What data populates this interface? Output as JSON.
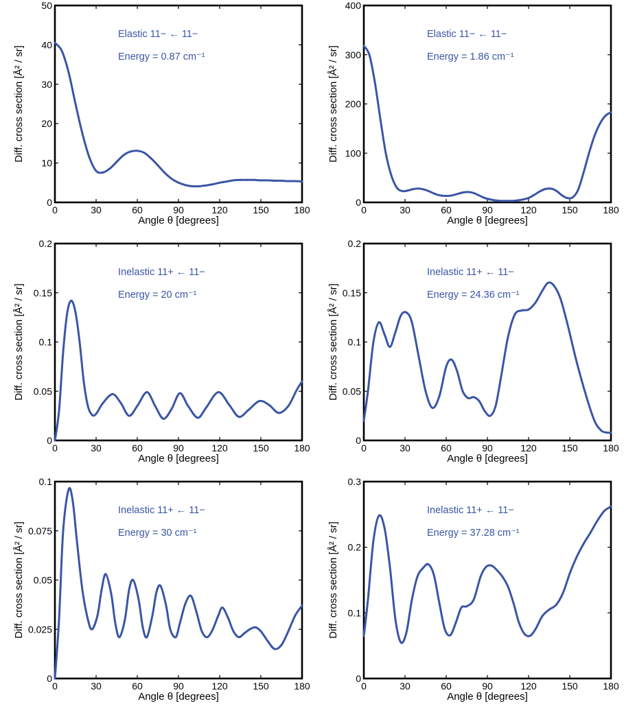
{
  "figure": {
    "line_color": "#3a55a4",
    "annotation_color": "#3a55a4",
    "frame_color": "#000000"
  },
  "chart_data": [
    {
      "type": "line",
      "xlabel": "Angle θ [degrees]",
      "ylabel": "Diff. cross section [Å² / sr]",
      "xlim": [
        0,
        180
      ],
      "ylim": [
        0,
        50
      ],
      "xticks": [
        0,
        30,
        60,
        90,
        120,
        150,
        180
      ],
      "yticks": [
        0,
        10,
        20,
        30,
        40,
        50
      ],
      "yticklabels": [
        "0",
        "10",
        "20",
        "30",
        "40",
        "50"
      ],
      "annotations": [
        "Elastic 11− ← 11−",
        "Energy = 0.87 cm⁻¹"
      ],
      "series": [
        {
          "x": [
            0,
            5,
            10,
            15,
            20,
            25,
            30,
            35,
            40,
            45,
            50,
            55,
            60,
            65,
            70,
            75,
            80,
            85,
            90,
            95,
            100,
            105,
            110,
            115,
            120,
            125,
            130,
            135,
            140,
            145,
            150,
            155,
            160,
            165,
            170,
            175,
            180
          ],
          "y": [
            40.5,
            38.5,
            33,
            25,
            17.5,
            11.5,
            8,
            7.6,
            8.6,
            10.3,
            12,
            12.9,
            13.1,
            12.6,
            11.2,
            9.4,
            7.5,
            6,
            5,
            4.4,
            4.1,
            4.1,
            4.3,
            4.6,
            5,
            5.3,
            5.6,
            5.7,
            5.7,
            5.7,
            5.6,
            5.6,
            5.5,
            5.5,
            5.4,
            5.4,
            5.3
          ]
        }
      ]
    },
    {
      "type": "line",
      "xlabel": "Angle θ [degrees]",
      "ylabel": "Diff. cross section [Å² / sr]",
      "xlim": [
        0,
        180
      ],
      "ylim": [
        0,
        400
      ],
      "xticks": [
        0,
        30,
        60,
        90,
        120,
        150,
        180
      ],
      "yticks": [
        0,
        100,
        200,
        300,
        400
      ],
      "yticklabels": [
        "0",
        "100",
        "200",
        "300",
        "400"
      ],
      "annotations": [
        "Elastic 11− ← 11−",
        "Energy = 1.86 cm⁻¹"
      ],
      "series": [
        {
          "x": [
            0,
            4,
            8,
            12,
            16,
            20,
            24,
            28,
            32,
            36,
            40,
            44,
            48,
            52,
            56,
            60,
            64,
            68,
            72,
            76,
            80,
            84,
            88,
            92,
            96,
            100,
            104,
            108,
            112,
            116,
            120,
            124,
            128,
            132,
            136,
            140,
            144,
            148,
            152,
            156,
            160,
            164,
            168,
            172,
            176,
            180
          ],
          "y": [
            318,
            300,
            245,
            170,
            100,
            55,
            30,
            23,
            24,
            27,
            28,
            26,
            22,
            17,
            14,
            13,
            14,
            17,
            20,
            21,
            19,
            14,
            9,
            6,
            4,
            3,
            3,
            3,
            4,
            6,
            9,
            15,
            22,
            27,
            28,
            24,
            15,
            9,
            10,
            25,
            60,
            100,
            135,
            160,
            176,
            183
          ]
        }
      ]
    },
    {
      "type": "line",
      "xlabel": "Angle θ [degrees]",
      "ylabel": "Diff. cross section [Å² / sr]",
      "xlim": [
        0,
        180
      ],
      "ylim": [
        0,
        0.2
      ],
      "xticks": [
        0,
        30,
        60,
        90,
        120,
        150,
        180
      ],
      "yticks": [
        0,
        0.05,
        0.1,
        0.15,
        0.2
      ],
      "yticklabels": [
        "0",
        "0.05",
        "0.1",
        "0.15",
        "0.2"
      ],
      "annotations": [
        "Inelastic 11+ ← 11−",
        "Energy = 20 cm⁻¹"
      ],
      "series": [
        {
          "x": [
            0,
            3,
            6,
            9,
            12,
            15,
            18,
            21,
            24,
            27,
            30,
            35,
            42,
            48,
            54,
            60,
            67,
            73,
            79,
            85,
            91,
            97,
            104,
            110,
            119,
            127,
            134,
            141,
            149,
            156,
            163,
            170,
            176,
            180
          ],
          "y": [
            0,
            0.03,
            0.09,
            0.13,
            0.142,
            0.13,
            0.1,
            0.06,
            0.035,
            0.026,
            0.027,
            0.038,
            0.047,
            0.038,
            0.025,
            0.035,
            0.049,
            0.035,
            0.022,
            0.032,
            0.048,
            0.035,
            0.023,
            0.033,
            0.049,
            0.036,
            0.024,
            0.031,
            0.04,
            0.036,
            0.028,
            0.035,
            0.051,
            0.06
          ]
        }
      ]
    },
    {
      "type": "line",
      "xlabel": "Angle θ [degrees]",
      "ylabel": "Diff. cross section [Å² / sr]",
      "xlim": [
        0,
        180
      ],
      "ylim": [
        0,
        0.2
      ],
      "xticks": [
        0,
        30,
        60,
        90,
        120,
        150,
        180
      ],
      "yticks": [
        0,
        0.05,
        0.1,
        0.15,
        0.2
      ],
      "yticklabels": [
        "0",
        "0.05",
        "0.1",
        "0.15",
        "0.2"
      ],
      "annotations": [
        "Inelastic 11+ ← 11−",
        "Energy = 24.36 cm⁻¹"
      ],
      "series": [
        {
          "x": [
            0,
            3,
            7,
            11,
            15,
            19,
            23,
            27,
            31,
            35,
            40,
            45,
            50,
            55,
            60,
            64,
            68,
            72,
            76,
            80,
            84,
            88,
            92,
            96,
            100,
            105,
            110,
            115,
            120,
            125,
            130,
            134,
            138,
            143,
            148,
            155,
            162,
            168,
            173,
            177,
            180
          ],
          "y": [
            0.02,
            0.05,
            0.1,
            0.12,
            0.108,
            0.095,
            0.11,
            0.127,
            0.13,
            0.12,
            0.085,
            0.05,
            0.033,
            0.045,
            0.075,
            0.082,
            0.07,
            0.05,
            0.043,
            0.044,
            0.04,
            0.03,
            0.025,
            0.035,
            0.065,
            0.105,
            0.128,
            0.132,
            0.133,
            0.14,
            0.152,
            0.16,
            0.158,
            0.145,
            0.12,
            0.08,
            0.045,
            0.02,
            0.01,
            0.008,
            0.008
          ]
        }
      ]
    },
    {
      "type": "line",
      "xlabel": "Angle θ [degrees]",
      "ylabel": "Diff. cross section [Å² / sr]",
      "xlim": [
        0,
        180
      ],
      "ylim": [
        0,
        0.1
      ],
      "xticks": [
        0,
        30,
        60,
        90,
        120,
        150,
        180
      ],
      "yticks": [
        0,
        0.025,
        0.05,
        0.075,
        0.1
      ],
      "yticklabels": [
        "0",
        "0.025",
        "0.05",
        "0.075",
        "0.1"
      ],
      "annotations": [
        "Inelastic 11+ ← 11−",
        "Energy = 30 cm⁻¹"
      ],
      "series": [
        {
          "x": [
            0,
            3,
            6,
            10,
            13,
            16,
            20,
            24,
            27,
            31,
            34,
            37,
            41,
            44,
            47,
            51,
            54,
            57,
            61,
            64,
            67,
            71,
            74,
            77,
            81,
            84,
            88,
            91,
            95,
            99,
            103,
            107,
            111,
            115,
            119,
            122,
            126,
            130,
            134,
            138,
            142,
            146,
            150,
            155,
            160,
            165,
            170,
            175,
            180
          ],
          "y": [
            0,
            0.03,
            0.075,
            0.096,
            0.09,
            0.07,
            0.045,
            0.03,
            0.025,
            0.032,
            0.045,
            0.053,
            0.043,
            0.028,
            0.021,
            0.03,
            0.045,
            0.05,
            0.04,
            0.026,
            0.021,
            0.032,
            0.044,
            0.047,
            0.037,
            0.025,
            0.021,
            0.028,
            0.038,
            0.042,
            0.034,
            0.024,
            0.021,
            0.025,
            0.032,
            0.036,
            0.031,
            0.024,
            0.021,
            0.023,
            0.025,
            0.026,
            0.024,
            0.019,
            0.015,
            0.017,
            0.024,
            0.032,
            0.037
          ]
        }
      ]
    },
    {
      "type": "line",
      "xlabel": "Angle θ [degrees]",
      "ylabel": "Diff. cross section [Å² / sr]",
      "xlim": [
        0,
        180
      ],
      "ylim": [
        0,
        0.3
      ],
      "xticks": [
        0,
        30,
        60,
        90,
        120,
        150,
        180
      ],
      "yticks": [
        0,
        0.1,
        0.2,
        0.3
      ],
      "yticklabels": [
        "0",
        "0.1",
        "0.2",
        "0.3"
      ],
      "annotations": [
        "Inelastic 11+ ← 11−",
        "Energy = 37.28 cm⁻¹"
      ],
      "series": [
        {
          "x": [
            0,
            3,
            7,
            11,
            15,
            19,
            23,
            27,
            31,
            35,
            39,
            43,
            47,
            51,
            55,
            59,
            63,
            67,
            71,
            75,
            80,
            85,
            89,
            93,
            97,
            101,
            105,
            109,
            113,
            117,
            121,
            125,
            130,
            135,
            140,
            145,
            150,
            155,
            160,
            165,
            170,
            175,
            180
          ],
          "y": [
            0.065,
            0.12,
            0.21,
            0.248,
            0.23,
            0.17,
            0.09,
            0.055,
            0.07,
            0.12,
            0.155,
            0.168,
            0.174,
            0.158,
            0.115,
            0.075,
            0.066,
            0.085,
            0.108,
            0.11,
            0.12,
            0.155,
            0.17,
            0.172,
            0.165,
            0.155,
            0.14,
            0.115,
            0.085,
            0.068,
            0.065,
            0.075,
            0.095,
            0.105,
            0.112,
            0.13,
            0.16,
            0.185,
            0.205,
            0.222,
            0.24,
            0.255,
            0.262
          ]
        }
      ]
    }
  ]
}
